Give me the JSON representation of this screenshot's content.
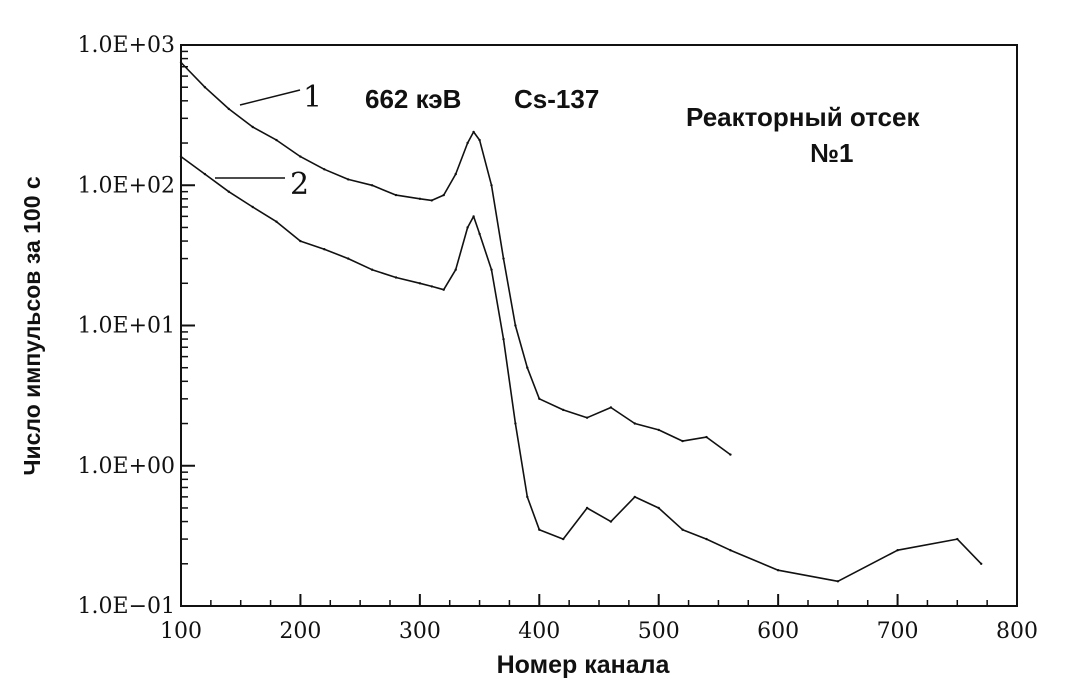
{
  "chart_data": {
    "type": "line",
    "title": "",
    "xlabel": "Номер канала",
    "ylabel": "Число импульсов за 100 с",
    "xlim": [
      100,
      800
    ],
    "ylim": [
      0.1,
      1000
    ],
    "y_scale": "log",
    "grid": false,
    "legend": "none",
    "x_ticks": [
      100,
      200,
      300,
      400,
      500,
      600,
      700,
      800
    ],
    "x_tick_labels": [
      "100",
      "200",
      "300",
      "400",
      "500",
      "600",
      "700",
      "800"
    ],
    "y_ticks": [
      0.1,
      1,
      10,
      100,
      1000
    ],
    "y_tick_labels": [
      "1.0E−01",
      "1.0E+00",
      "1.0E+01",
      "1.0E+02",
      "1.0E+03"
    ],
    "annotations": {
      "curve1_label": "1",
      "curve2_label": "2",
      "peak_energy": "662 кэВ",
      "isotope": "Cs-137",
      "location_line1": "Реакторный отсек",
      "location_line2": "№1"
    },
    "series": [
      {
        "label": "1",
        "x": [
          100,
          120,
          140,
          160,
          180,
          200,
          220,
          240,
          260,
          280,
          300,
          310,
          320,
          330,
          340,
          345,
          350,
          360,
          370,
          380,
          390,
          400,
          420,
          440,
          460,
          480,
          500,
          520,
          540,
          560
        ],
        "y": [
          750,
          500,
          350,
          260,
          210,
          160,
          130,
          110,
          100,
          85,
          80,
          78,
          85,
          120,
          200,
          240,
          210,
          100,
          30,
          10,
          5,
          3,
          2.5,
          2.2,
          2.6,
          2.0,
          1.8,
          1.5,
          1.6,
          1.2
        ]
      },
      {
        "label": "2",
        "x": [
          100,
          120,
          140,
          160,
          180,
          200,
          220,
          240,
          260,
          280,
          300,
          310,
          320,
          330,
          340,
          345,
          350,
          360,
          370,
          380,
          390,
          400,
          420,
          440,
          460,
          480,
          500,
          520,
          540,
          560,
          600,
          650,
          700,
          750,
          770
        ],
        "y": [
          160,
          120,
          90,
          70,
          55,
          40,
          35,
          30,
          25,
          22,
          20,
          19,
          18,
          25,
          50,
          60,
          45,
          25,
          8,
          2,
          0.6,
          0.35,
          0.3,
          0.5,
          0.4,
          0.6,
          0.5,
          0.35,
          0.3,
          0.25,
          0.18,
          0.15,
          0.25,
          0.3,
          0.2
        ]
      }
    ]
  }
}
